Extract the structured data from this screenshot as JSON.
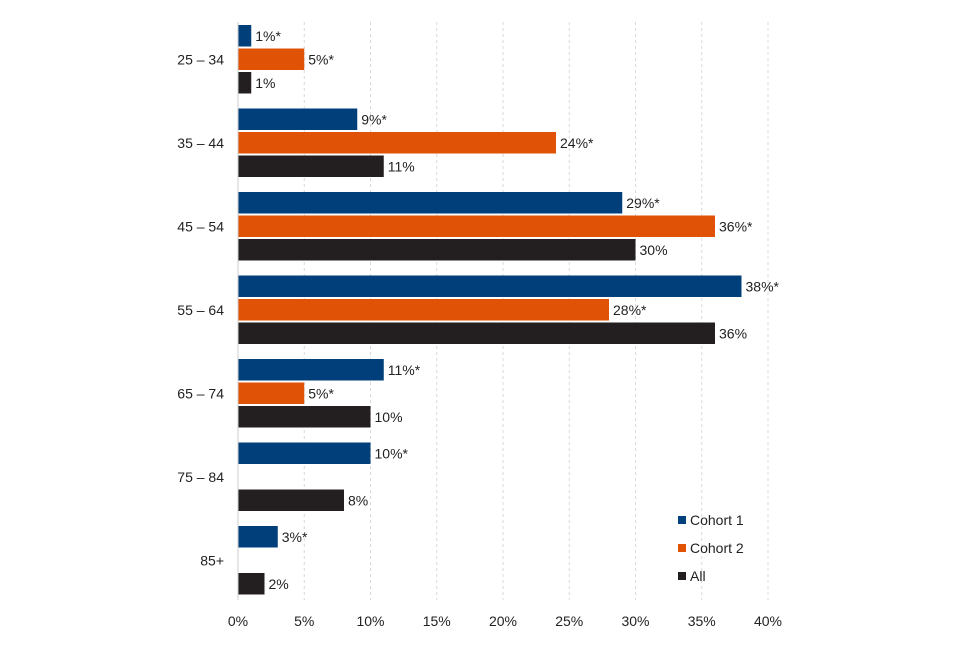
{
  "chart_data": {
    "type": "bar",
    "orientation": "horizontal",
    "categories": [
      "25 – 34",
      "35 – 44",
      "45 – 54",
      "55 – 64",
      "65 – 74",
      "75 – 84",
      "85+"
    ],
    "series": [
      {
        "name": "Cohort 1",
        "color": "#003f7a",
        "values": [
          1,
          9,
          29,
          38,
          11,
          10,
          3
        ],
        "labels": [
          "1%*",
          "9%*",
          "29%*",
          "38%*",
          "11%*",
          "10%*",
          "3%*"
        ]
      },
      {
        "name": "Cohort 2",
        "color": "#e05206",
        "values": [
          5,
          24,
          36,
          28,
          5,
          null,
          null
        ],
        "labels": [
          "5%*",
          "24%*",
          "36%*",
          "28%*",
          "5%*",
          "",
          ""
        ]
      },
      {
        "name": "All",
        "color": "#231f20",
        "values": [
          1,
          11,
          30,
          36,
          10,
          8,
          2
        ],
        "labels": [
          "1%",
          "11%",
          "30%",
          "36%",
          "10%",
          "8%",
          "2%"
        ]
      }
    ],
    "xlim": [
      0,
      40
    ],
    "xticks": [
      0,
      5,
      10,
      15,
      20,
      25,
      30,
      35,
      40
    ],
    "xtick_labels": [
      "0%",
      "5%",
      "10%",
      "15%",
      "20%",
      "25%",
      "30%",
      "35%",
      "40%"
    ],
    "grid": "vertical dashed",
    "legend_position": "bottom-right"
  }
}
